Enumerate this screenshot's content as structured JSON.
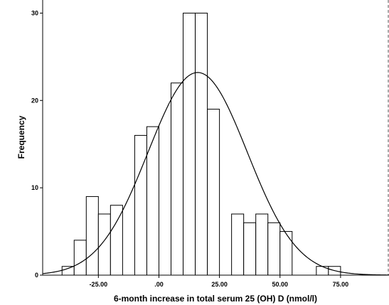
{
  "chart_data": {
    "type": "bar",
    "title": "",
    "xlabel": "6-month increase in total serum 25 (OH) D (nmol/l)",
    "ylabel": "Frequency",
    "xlim": [
      -48,
      95
    ],
    "ylim": [
      0,
      31.5
    ],
    "x_ticks": [
      {
        "value": -25,
        "label": "-25.00"
      },
      {
        "value": 0,
        "label": ".00"
      },
      {
        "value": 25,
        "label": "25.00"
      },
      {
        "value": 50,
        "label": "50.00"
      },
      {
        "value": 75,
        "label": "75.00"
      }
    ],
    "y_ticks": [
      0,
      10,
      20,
      30
    ],
    "bin_width": 5,
    "bins": [
      {
        "start": -40,
        "end": -35,
        "count": 1
      },
      {
        "start": -35,
        "end": -30,
        "count": 4
      },
      {
        "start": -30,
        "end": -25,
        "count": 9
      },
      {
        "start": -25,
        "end": -20,
        "count": 7
      },
      {
        "start": -20,
        "end": -15,
        "count": 8
      },
      {
        "start": -15,
        "end": -10,
        "count": 0
      },
      {
        "start": -10,
        "end": -5,
        "count": 16
      },
      {
        "start": -5,
        "end": 0,
        "count": 17
      },
      {
        "start": 0,
        "end": 5,
        "count": 0
      },
      {
        "start": 5,
        "end": 10,
        "count": 22
      },
      {
        "start": 10,
        "end": 15,
        "count": 30
      },
      {
        "start": 15,
        "end": 20,
        "count": 30
      },
      {
        "start": 20,
        "end": 25,
        "count": 19
      },
      {
        "start": 25,
        "end": 30,
        "count": 0
      },
      {
        "start": 30,
        "end": 35,
        "count": 7
      },
      {
        "start": 35,
        "end": 40,
        "count": 6
      },
      {
        "start": 40,
        "end": 45,
        "count": 7
      },
      {
        "start": 45,
        "end": 50,
        "count": 6
      },
      {
        "start": 50,
        "end": 55,
        "count": 5
      },
      {
        "start": 55,
        "end": 60,
        "count": 0
      },
      {
        "start": 60,
        "end": 65,
        "count": 0
      },
      {
        "start": 65,
        "end": 70,
        "count": 1
      },
      {
        "start": 70,
        "end": 75,
        "count": 1
      }
    ],
    "normal_curve": {
      "mean": 16,
      "sd": 20.5,
      "peak": 23.2
    },
    "grid": false,
    "legend": "none"
  }
}
